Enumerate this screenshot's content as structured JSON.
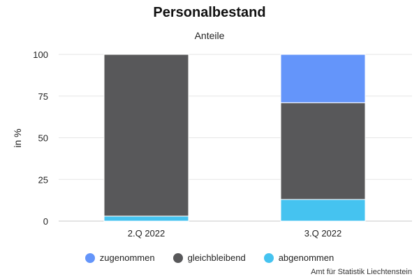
{
  "chart_data": {
    "type": "bar",
    "stacked": true,
    "title": "Personalbestand",
    "subtitle": "Anteile",
    "ylabel": "in %",
    "xlabel": "",
    "ylim": [
      0,
      100
    ],
    "yticks": [
      0,
      25,
      50,
      75,
      100
    ],
    "categories": [
      "2.Q 2022",
      "3.Q 2022"
    ],
    "series": [
      {
        "name": "abgenommen",
        "color": "#45c3f0",
        "values": [
          3,
          13
        ]
      },
      {
        "name": "gleichbleibend",
        "color": "#58585a",
        "values": [
          97,
          58
        ]
      },
      {
        "name": "zugenommen",
        "color": "#6495fa",
        "values": [
          0,
          29
        ]
      }
    ],
    "legend_order": [
      "zugenommen",
      "gleichbleibend",
      "abgenommen"
    ],
    "legend_position": "bottom",
    "grid": true
  },
  "source": "Amt für Statistik Liechtenstein"
}
